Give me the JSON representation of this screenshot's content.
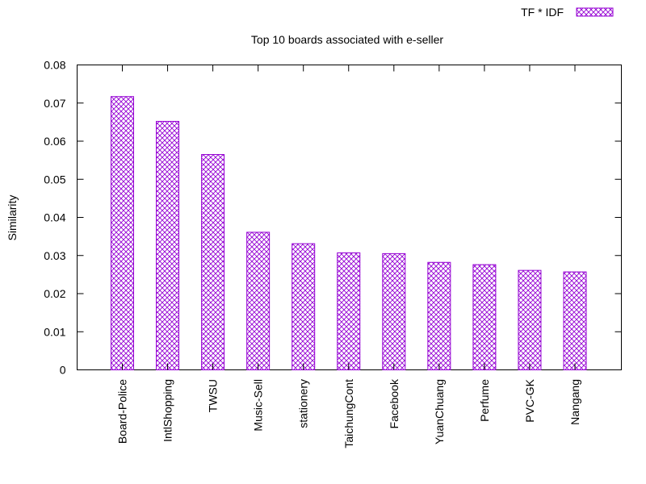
{
  "chart_data": {
    "type": "bar",
    "title": "Top 10 boards associated with e-seller",
    "xlabel": "",
    "ylabel": "Similarity",
    "ylim": [
      0,
      0.08
    ],
    "yticks": [
      "0",
      "0.01",
      "0.02",
      "0.03",
      "0.04",
      "0.05",
      "0.06",
      "0.07",
      "0.08"
    ],
    "categories": [
      "Board-Police",
      "IntlShopping",
      "TWSU",
      "Music-Sell",
      "stationery",
      "TaichungCont",
      "Facebook",
      "YuanChuang",
      "Perfume",
      "PVC-GK",
      "Nangang"
    ],
    "series": [
      {
        "name": "TF * IDF",
        "values": [
          0.0717,
          0.0652,
          0.0565,
          0.0361,
          0.0331,
          0.0307,
          0.0305,
          0.0282,
          0.0276,
          0.0261,
          0.0257
        ],
        "color": "#9400d3"
      }
    ],
    "grid": false,
    "legend_position": "top-right",
    "bar_pattern": "crosshatch"
  }
}
